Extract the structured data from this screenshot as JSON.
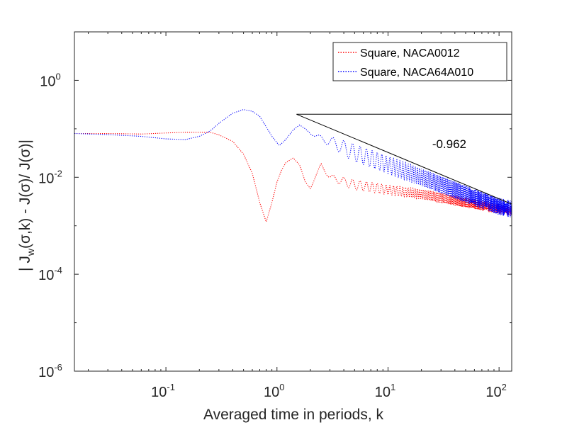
{
  "chart_data": {
    "type": "line",
    "xscale": "log",
    "yscale": "log",
    "xlabel": "Averaged time in periods, k",
    "ylabel": {
      "parts": [
        "| J",
        "w",
        "(σ,k) -  J(σ)/ J(σ)|"
      ]
    },
    "xlim": [
      0.015,
      130
    ],
    "ylim": [
      1e-06,
      10
    ],
    "xticks": [
      {
        "value": 0.1,
        "base": "10",
        "exp": "-1"
      },
      {
        "value": 1,
        "base": "10",
        "exp": "0"
      },
      {
        "value": 10,
        "base": "10",
        "exp": "1"
      },
      {
        "value": 100,
        "base": "10",
        "exp": "2"
      }
    ],
    "yticks": [
      {
        "value": 1e-06,
        "base": "10",
        "exp": "-6"
      },
      {
        "value": 0.0001,
        "base": "10",
        "exp": "-4"
      },
      {
        "value": 0.01,
        "base": "10",
        "exp": "-2"
      },
      {
        "value": 1,
        "base": "10",
        "exp": "0"
      }
    ],
    "series": [
      {
        "name": "Square, NACA0012",
        "color": "#ff0000",
        "style": "dotted",
        "points": [
          [
            0.015,
            0.08
          ],
          [
            0.03,
            0.08
          ],
          [
            0.06,
            0.078
          ],
          [
            0.1,
            0.082
          ],
          [
            0.15,
            0.085
          ],
          [
            0.2,
            0.085
          ],
          [
            0.25,
            0.085
          ],
          [
            0.3,
            0.075
          ],
          [
            0.4,
            0.055
          ],
          [
            0.5,
            0.03
          ],
          [
            0.6,
            0.012
          ],
          [
            0.7,
            0.003
          ],
          [
            0.8,
            0.0012
          ],
          [
            0.9,
            0.003
          ],
          [
            1.0,
            0.008
          ],
          [
            1.1,
            0.014
          ],
          [
            1.2,
            0.02
          ],
          [
            1.4,
            0.025
          ],
          [
            1.6,
            0.018
          ],
          [
            1.8,
            0.008
          ],
          [
            2.0,
            0.006
          ],
          [
            2.5,
            0.018
          ],
          [
            3,
            0.01
          ],
          [
            5,
            0.007
          ],
          [
            10,
            0.0055
          ],
          [
            20,
            0.0045
          ],
          [
            50,
            0.003
          ],
          [
            100,
            0.0022
          ],
          [
            130,
            0.002
          ]
        ],
        "oscillation": {
          "start_k": 1.8,
          "amplitude_decades": 0.2
        }
      },
      {
        "name": "Square, NACA64A010",
        "color": "#0000ff",
        "style": "dotted",
        "points": [
          [
            0.015,
            0.08
          ],
          [
            0.03,
            0.076
          ],
          [
            0.06,
            0.07
          ],
          [
            0.1,
            0.062
          ],
          [
            0.15,
            0.06
          ],
          [
            0.2,
            0.07
          ],
          [
            0.25,
            0.09
          ],
          [
            0.3,
            0.13
          ],
          [
            0.4,
            0.21
          ],
          [
            0.5,
            0.25
          ],
          [
            0.6,
            0.23
          ],
          [
            0.7,
            0.18
          ],
          [
            0.8,
            0.11
          ],
          [
            0.9,
            0.07
          ],
          [
            1.05,
            0.045
          ],
          [
            1.2,
            0.06
          ],
          [
            1.4,
            0.095
          ],
          [
            1.6,
            0.12
          ],
          [
            1.8,
            0.1
          ],
          [
            2.2,
            0.07
          ],
          [
            3,
            0.055
          ],
          [
            5,
            0.032
          ],
          [
            10,
            0.018
          ],
          [
            20,
            0.01
          ],
          [
            50,
            0.0045
          ],
          [
            100,
            0.0025
          ],
          [
            130,
            0.0022
          ]
        ],
        "oscillation": {
          "start_k": 1.8,
          "amplitude_decades": 0.35
        }
      }
    ],
    "slope_triangle": {
      "vertices": [
        [
          1.5,
          0.2
        ],
        [
          130,
          0.2
        ],
        [
          130,
          0.0028
        ]
      ],
      "label": "-0.962",
      "label_at": [
        25,
        0.04
      ]
    },
    "legend": {
      "placement": "top-right",
      "entries": [
        "Square, NACA0012",
        "Square, NACA64A010"
      ]
    }
  }
}
